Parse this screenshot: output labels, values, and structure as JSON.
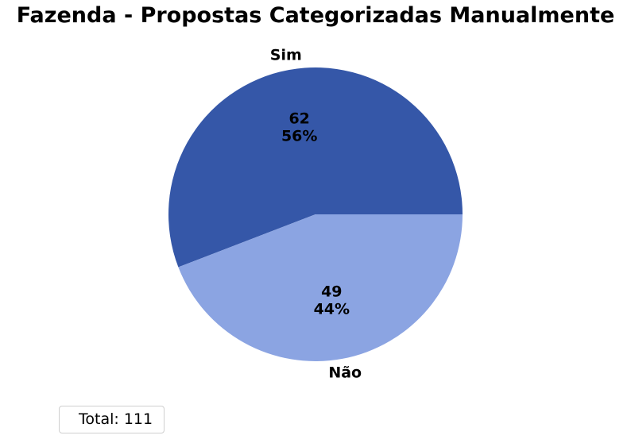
{
  "chart_data": {
    "type": "pie",
    "title": "Fazenda - Propostas Categorizadas Manualmente",
    "slices": [
      {
        "label": "Sim",
        "value": 62,
        "percent_label": "56%",
        "color": "#3557a8"
      },
      {
        "label": "Não",
        "value": 49,
        "percent_label": "44%",
        "color": "#8ba4e2"
      }
    ],
    "legend": {
      "text": "Total: 111",
      "placement": "bottom-left"
    }
  }
}
